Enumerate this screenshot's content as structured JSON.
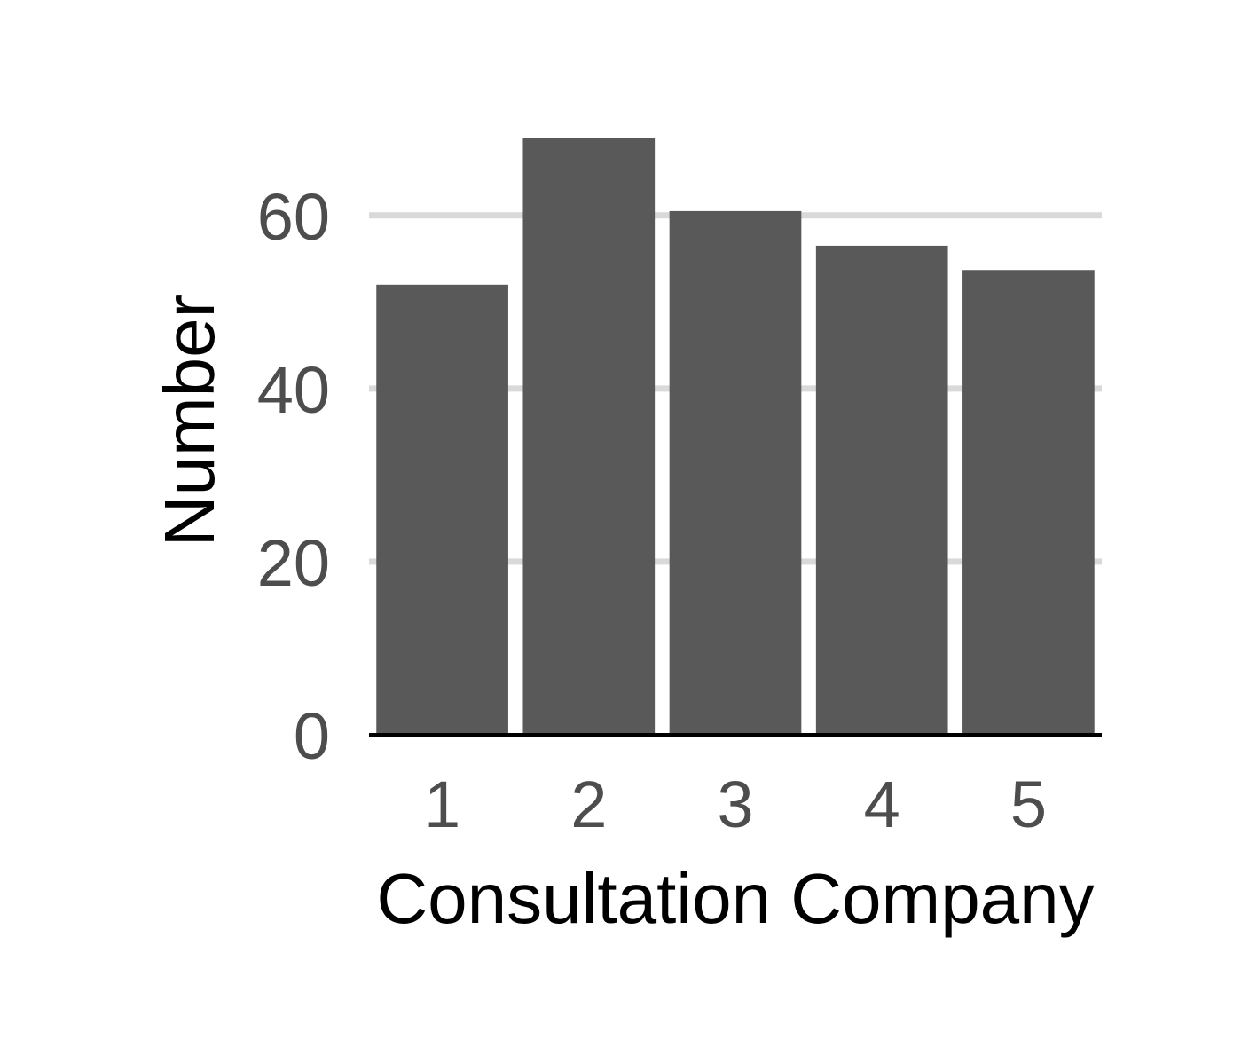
{
  "chart_data": {
    "type": "bar",
    "categories": [
      "1",
      "2",
      "3",
      "4",
      "5"
    ],
    "values": [
      52,
      69,
      60.5,
      56.5,
      53.7
    ],
    "title": "",
    "xlabel": "Consultation Company",
    "ylabel": "Number",
    "ylim": [
      0,
      69
    ],
    "y_ticks": [
      "0",
      "20",
      "40",
      "60"
    ],
    "y_tick_values": [
      0,
      20,
      40,
      60
    ],
    "grid": "horizontal major gridlines",
    "legend": "none",
    "colors": {
      "bar": "#595959",
      "grid": "#d9d9d9",
      "axis_line": "#000000",
      "tick_text": "#4d4d4d",
      "axis_title": "#000000",
      "background": "#ffffff"
    }
  }
}
